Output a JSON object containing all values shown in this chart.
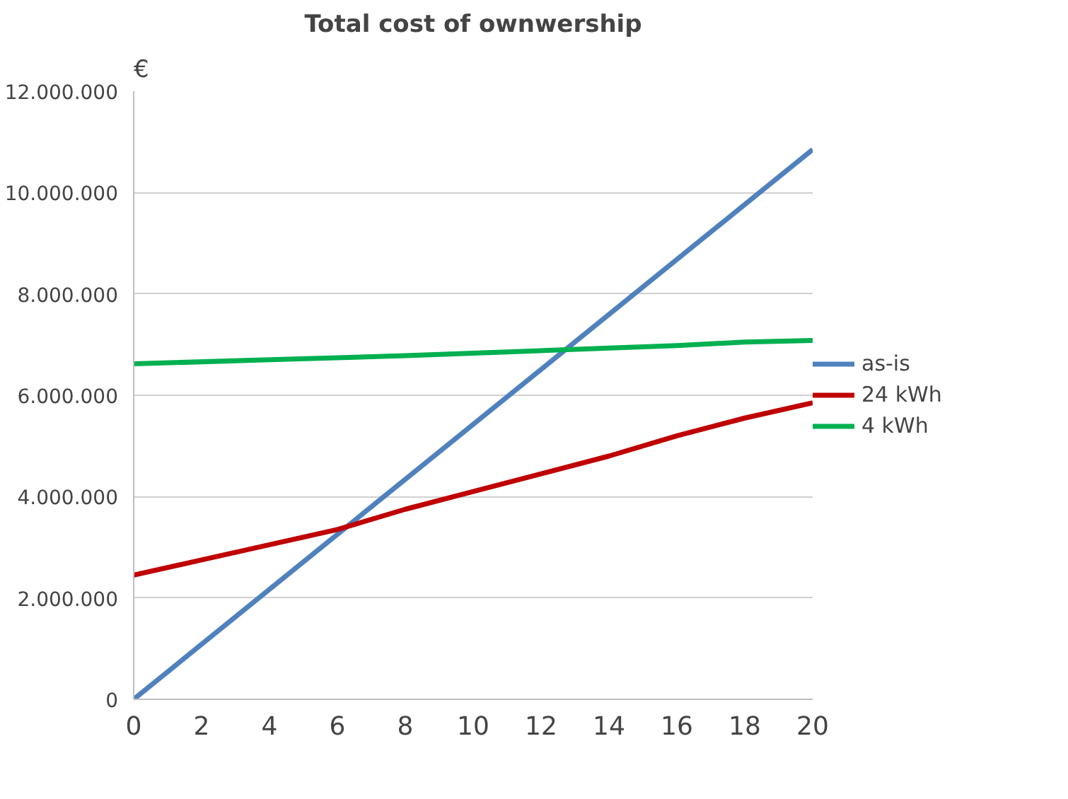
{
  "chart_data": {
    "type": "line",
    "title": "Total cost of ownwership",
    "ylabel": "€",
    "series": [
      {
        "name": "as-is",
        "color": "#4f81bd",
        "x": [
          0,
          20
        ],
        "values": [
          0,
          10850000
        ]
      },
      {
        "name": "24 kWh",
        "color": "#c00000",
        "x": [
          0,
          2,
          4,
          6,
          8,
          10,
          12,
          14,
          16,
          18,
          20
        ],
        "values": [
          2450000,
          2750000,
          3050000,
          3350000,
          3750000,
          4100000,
          4450000,
          4800000,
          5200000,
          5550000,
          5850000
        ]
      },
      {
        "name": "4 kWh",
        "color": "#00b050",
        "x": [
          0,
          4,
          8,
          10,
          14,
          16,
          18,
          20
        ],
        "values": [
          6620000,
          6700000,
          6780000,
          6830000,
          6930000,
          6980000,
          7050000,
          7080000
        ]
      }
    ],
    "xlim": [
      0,
      20
    ],
    "xticks": [
      0,
      2,
      4,
      6,
      8,
      10,
      12,
      14,
      16,
      18,
      20
    ],
    "ylim": [
      0,
      12000000
    ],
    "yticks": [
      {
        "value": 0,
        "label": "0"
      },
      {
        "value": 2000000,
        "label": "2.000.000"
      },
      {
        "value": 4000000,
        "label": "4.000.000"
      },
      {
        "value": 6000000,
        "label": "6.000.000"
      },
      {
        "value": 8000000,
        "label": "8.000.000"
      },
      {
        "value": 10000000,
        "label": "10.000.000"
      },
      {
        "value": 12000000,
        "label": "12.000.000"
      }
    ],
    "grid": "y",
    "legend": "right",
    "marker": "none",
    "line_style": "solid"
  }
}
